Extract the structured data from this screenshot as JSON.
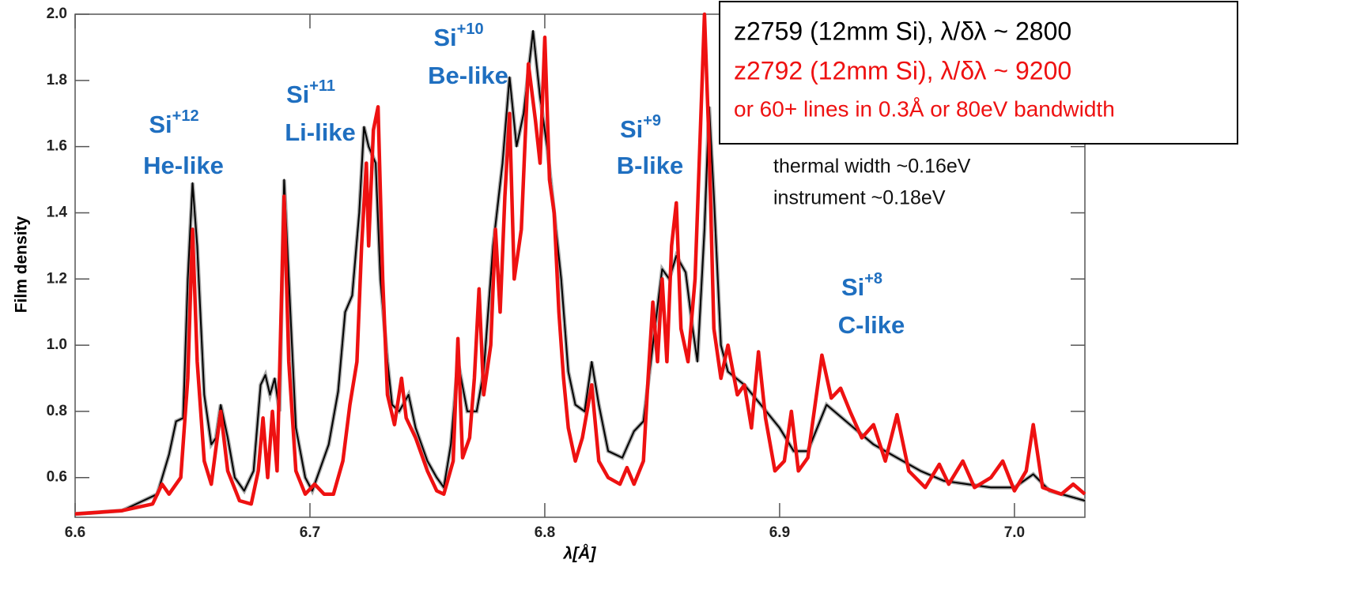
{
  "chart_data": {
    "type": "line",
    "x_label": "λ[Å]",
    "y_label": "Film density",
    "xlim": [
      6.6,
      7.03
    ],
    "ylim": [
      0.48,
      2.0
    ],
    "xticks": [
      6.6,
      6.7,
      6.8,
      6.9,
      {
        "value": 7,
        "label": "7.0"
      }
    ],
    "yticks": [
      0.6,
      0.8,
      {
        "value": 1,
        "label": "1.0"
      },
      1.2,
      1.4,
      1.6,
      1.8,
      {
        "value": 2,
        "label": "2.0"
      }
    ],
    "series": [
      {
        "name": "z2759 (12mm Si), λ/δλ ~ 2800",
        "color": "#000000",
        "x": [
          6.6,
          6.62,
          6.635,
          6.64,
          6.643,
          6.646,
          6.648,
          6.65,
          6.652,
          6.655,
          6.658,
          6.66,
          6.662,
          6.665,
          6.668,
          6.672,
          6.676,
          6.679,
          6.681,
          6.683,
          6.685,
          6.687,
          6.689,
          6.691,
          6.694,
          6.698,
          6.701,
          6.704,
          6.708,
          6.712,
          6.715,
          6.718,
          6.721,
          6.723,
          6.725,
          6.728,
          6.73,
          6.733,
          6.735,
          6.738,
          6.742,
          6.745,
          6.75,
          6.754,
          6.757,
          6.76,
          6.763,
          6.767,
          6.771,
          6.774,
          6.778,
          6.782,
          6.785,
          6.788,
          6.791,
          6.795,
          6.798,
          6.801,
          6.804,
          6.807,
          6.81,
          6.813,
          6.817,
          6.82,
          6.823,
          6.827,
          6.833,
          6.838,
          6.842,
          6.846,
          6.85,
          6.853,
          6.856,
          6.86,
          6.863,
          6.865,
          6.868,
          6.87,
          6.872,
          6.875,
          6.878,
          6.885,
          6.892,
          6.9,
          6.906,
          6.912,
          6.92,
          6.93,
          6.94,
          6.95,
          6.96,
          6.97,
          6.98,
          6.99,
          7.0,
          7.008,
          7.015,
          7.03
        ],
        "values": [
          0.49,
          0.5,
          0.55,
          0.67,
          0.77,
          0.78,
          1.2,
          1.49,
          1.3,
          0.85,
          0.7,
          0.72,
          0.82,
          0.72,
          0.6,
          0.56,
          0.62,
          0.88,
          0.91,
          0.85,
          0.9,
          0.8,
          1.5,
          1.2,
          0.75,
          0.6,
          0.56,
          0.62,
          0.7,
          0.86,
          1.1,
          1.15,
          1.4,
          1.66,
          1.6,
          1.55,
          1.2,
          0.95,
          0.82,
          0.8,
          0.85,
          0.75,
          0.65,
          0.6,
          0.57,
          0.7,
          0.95,
          0.8,
          0.8,
          0.92,
          1.3,
          1.55,
          1.81,
          1.6,
          1.7,
          1.95,
          1.75,
          1.6,
          1.4,
          1.2,
          0.92,
          0.82,
          0.8,
          0.95,
          0.82,
          0.68,
          0.66,
          0.74,
          0.77,
          1.0,
          1.23,
          1.2,
          1.27,
          1.22,
          1.05,
          0.95,
          1.35,
          1.72,
          1.45,
          1.0,
          0.92,
          0.88,
          0.82,
          0.75,
          0.68,
          0.68,
          0.82,
          0.76,
          0.7,
          0.66,
          0.62,
          0.59,
          0.58,
          0.57,
          0.57,
          0.61,
          0.56,
          0.53
        ]
      },
      {
        "name": "z2792 (12mm Si), λ/δλ ~ 9200",
        "color": "#ee1111",
        "x": [
          6.6,
          6.62,
          6.633,
          6.637,
          6.64,
          6.645,
          6.648,
          6.65,
          6.652,
          6.655,
          6.658,
          6.662,
          6.665,
          6.67,
          6.675,
          6.678,
          6.68,
          6.682,
          6.684,
          6.686,
          6.689,
          6.691,
          6.694,
          6.698,
          6.702,
          6.706,
          6.71,
          6.714,
          6.717,
          6.72,
          6.722,
          6.724,
          6.725,
          6.727,
          6.729,
          6.731,
          6.733,
          6.736,
          6.739,
          6.741,
          6.745,
          6.75,
          6.754,
          6.757,
          6.761,
          6.763,
          6.765,
          6.768,
          6.77,
          6.772,
          6.774,
          6.777,
          6.779,
          6.781,
          6.783,
          6.785,
          6.787,
          6.79,
          6.793,
          6.796,
          6.798,
          6.8,
          6.802,
          6.804,
          6.806,
          6.808,
          6.81,
          6.813,
          6.816,
          6.82,
          6.823,
          6.827,
          6.832,
          6.835,
          6.838,
          6.842,
          6.844,
          6.846,
          6.848,
          6.85,
          6.852,
          6.854,
          6.856,
          6.858,
          6.861,
          6.864,
          6.866,
          6.868,
          6.87,
          6.872,
          6.875,
          6.878,
          6.882,
          6.885,
          6.888,
          6.891,
          6.894,
          6.898,
          6.902,
          6.905,
          6.908,
          6.912,
          6.918,
          6.922,
          6.926,
          6.93,
          6.935,
          6.94,
          6.945,
          6.95,
          6.955,
          6.962,
          6.968,
          6.972,
          6.978,
          6.983,
          6.99,
          6.995,
          7.0,
          7.005,
          7.008,
          7.012,
          7.02,
          7.025,
          7.03
        ],
        "values": [
          0.49,
          0.5,
          0.52,
          0.58,
          0.55,
          0.6,
          0.9,
          1.35,
          0.95,
          0.65,
          0.58,
          0.8,
          0.62,
          0.53,
          0.52,
          0.62,
          0.78,
          0.6,
          0.8,
          0.62,
          1.45,
          0.95,
          0.62,
          0.55,
          0.58,
          0.55,
          0.55,
          0.65,
          0.82,
          0.95,
          1.3,
          1.55,
          1.3,
          1.65,
          1.72,
          1.2,
          0.85,
          0.76,
          0.9,
          0.78,
          0.72,
          0.62,
          0.56,
          0.55,
          0.65,
          1.02,
          0.66,
          0.72,
          0.9,
          1.17,
          0.85,
          1.0,
          1.35,
          1.1,
          1.45,
          1.7,
          1.2,
          1.35,
          1.85,
          1.68,
          1.55,
          1.93,
          1.5,
          1.4,
          1.1,
          0.9,
          0.75,
          0.65,
          0.72,
          0.88,
          0.65,
          0.6,
          0.58,
          0.63,
          0.58,
          0.65,
          0.9,
          1.13,
          0.95,
          1.2,
          0.95,
          1.3,
          1.43,
          1.05,
          0.95,
          1.2,
          1.6,
          2.0,
          1.6,
          1.05,
          0.9,
          1.0,
          0.85,
          0.88,
          0.75,
          0.98,
          0.78,
          0.62,
          0.65,
          0.8,
          0.62,
          0.66,
          0.97,
          0.84,
          0.87,
          0.8,
          0.72,
          0.76,
          0.65,
          0.79,
          0.62,
          0.57,
          0.64,
          0.58,
          0.65,
          0.57,
          0.6,
          0.65,
          0.56,
          0.62,
          0.76,
          0.57,
          0.55,
          0.58,
          0.55
        ]
      }
    ],
    "legend_note": "or 60+ lines in 0.3Å or 80eV bandwidth",
    "notes": [
      "thermal width ~0.16eV",
      "instrument ~0.18eV"
    ],
    "annotations": [
      {
        "text": "Si",
        "sup": "+12",
        "sub": "He-like"
      },
      {
        "text": "Si",
        "sup": "+11",
        "sub": "Li-like"
      },
      {
        "text": "Si",
        "sup": "+10",
        "sub": "Be-like"
      },
      {
        "text": "Si",
        "sup": "+9",
        "sub": "B-like"
      },
      {
        "text": "Si",
        "sup": "+8",
        "sub": "C-like"
      }
    ]
  }
}
